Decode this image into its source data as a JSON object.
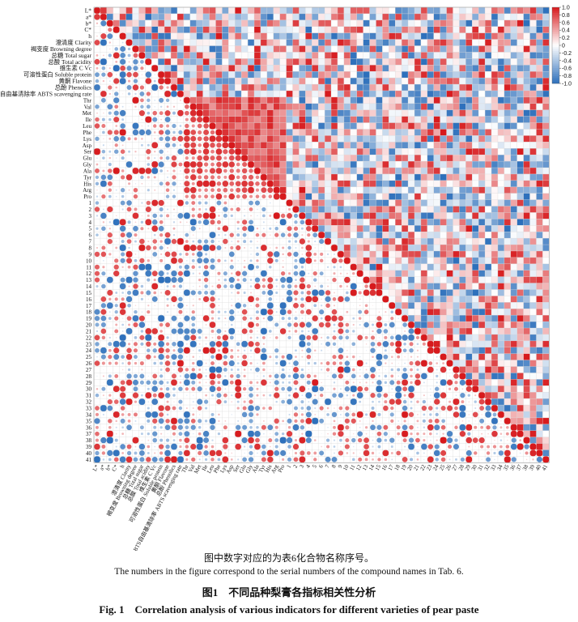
{
  "chart_data": {
    "type": "heatmap",
    "subtype": "correlation-matrix",
    "lower_triangle": "circles sized and colored by correlation coefficient",
    "upper_triangle": "colored squares by correlation coefficient",
    "variables": [
      "L*",
      "a*",
      "b*",
      "C*",
      "h",
      "澄清度 Clarity",
      "褐变度 Browning degree",
      "总糖 Total sugar",
      "总酸 Total acidity",
      "维生素 C Vc",
      "可溶性蛋白 Soluble protein",
      "黄酮 Flavone",
      "总酚 Phenolics",
      "ABTS自由基清除率 ABTS scavenging rate",
      "Thr",
      "Val",
      "Met",
      "Ile",
      "Leu",
      "Phe",
      "Lys",
      "Asp",
      "Ser",
      "Glu",
      "Gly",
      "Ala",
      "Tyr",
      "His",
      "Arg",
      "Pro",
      "1",
      "2",
      "3",
      "4",
      "5",
      "6",
      "7",
      "8",
      "9",
      "10",
      "11",
      "12",
      "13",
      "14",
      "15",
      "16",
      "17",
      "18",
      "19",
      "20",
      "21",
      "22",
      "23",
      "24",
      "25",
      "26",
      "27",
      "28",
      "29",
      "30",
      "31",
      "32",
      "33",
      "34",
      "35",
      "36",
      "37",
      "38",
      "39",
      "40",
      "41"
    ],
    "colorbar": {
      "min": -1.0,
      "max": 1.0,
      "ticks": [
        "1.0",
        "0.8",
        "0.6",
        "0.4",
        "0.2",
        "0",
        "-0.2",
        "-0.4",
        "-0.6",
        "-0.8",
        "-1.0"
      ],
      "positive_color": "#d7191c",
      "neutral_color": "#ffffff",
      "negative_color": "#2c6fbb"
    },
    "diagonal_value": 1.0
  },
  "caption_zh": "图中数字对应的为表6化合物名称序号。",
  "caption_en": "The numbers in the figure correspond to the serial numbers of the compound names in Tab. 6.",
  "figure_title_zh": "图1　不同品种梨膏各指标相关性分析",
  "figure_title_en": "Fig. 1　Correlation analysis of various indicators for different varieties of pear paste"
}
